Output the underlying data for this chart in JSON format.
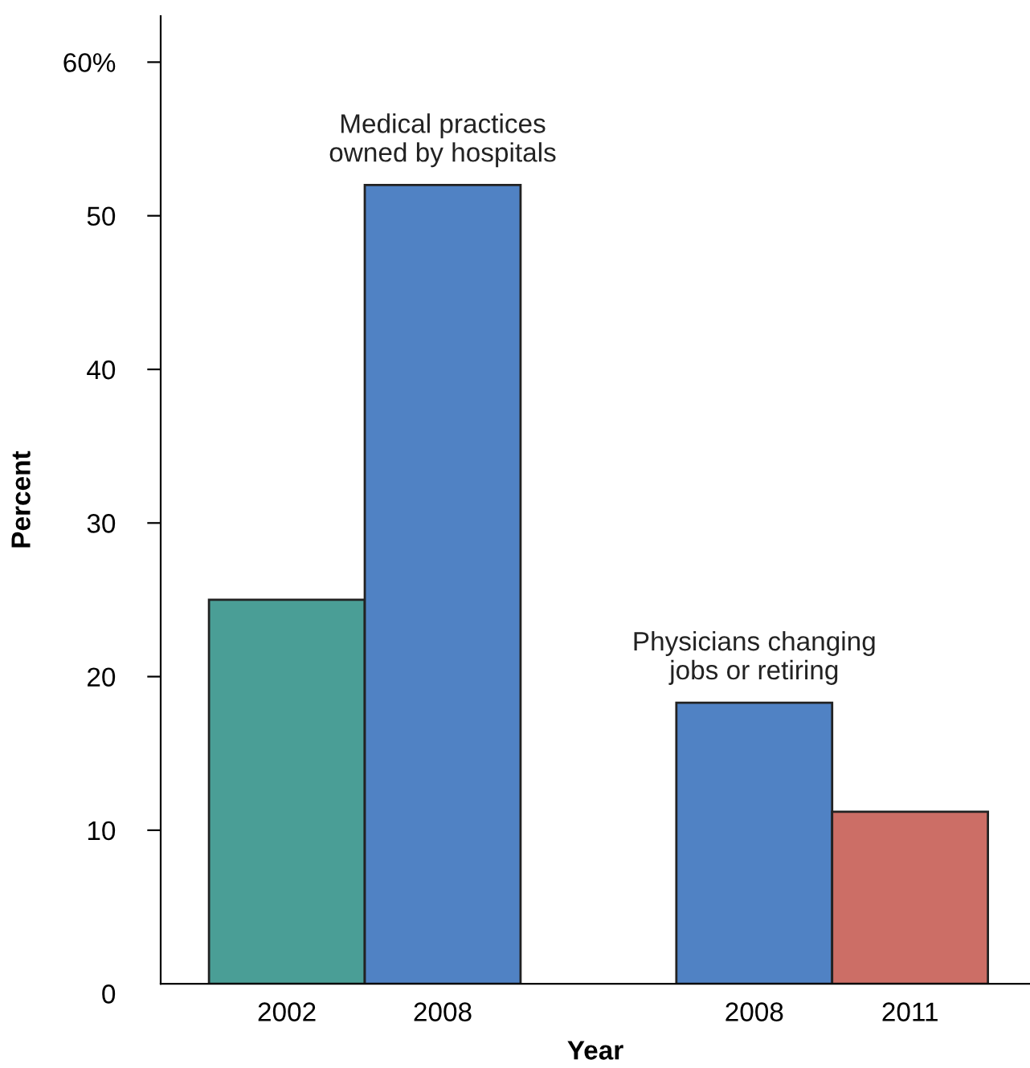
{
  "chart_data": {
    "type": "bar",
    "categories": [
      "2002",
      "2008",
      null,
      "2008",
      "2011"
    ],
    "values": [
      25,
      52,
      null,
      18.3,
      11.2
    ],
    "colors": [
      "#4a9e96",
      "#5082c4",
      "#5082c4",
      "#5082c4",
      "#cc6e66"
    ],
    "xlabel": "Year",
    "ylabel": "Percent",
    "ylim": [
      0,
      63
    ],
    "yticks": [
      {
        "value": 0,
        "label": "0"
      },
      10,
      20,
      30,
      40,
      50,
      {
        "value": 60,
        "label": "60%"
      }
    ],
    "annotations": [
      "Medical practices\nowned by hospitals",
      "Physicians changing\njobs or retiring"
    ],
    "grid": false,
    "legend": false
  }
}
